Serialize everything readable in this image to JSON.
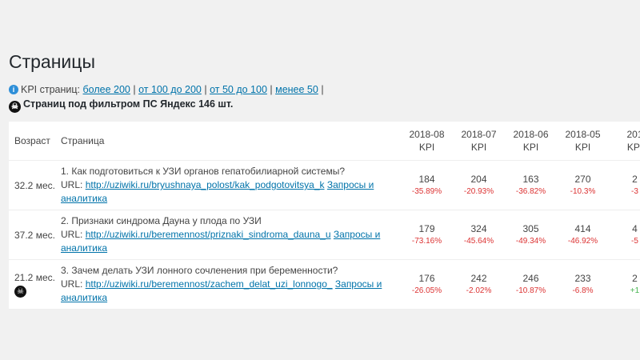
{
  "page_title": "Страницы",
  "kpi_filter": {
    "label": "KPI страниц:",
    "links": [
      "более 200",
      "от 100 до 200",
      "от 50 до 100",
      "менее 50"
    ]
  },
  "yandex_filter": "Страниц под фильтром ПС Яндекс 146 шт.",
  "table": {
    "headers": {
      "age": "Возраст",
      "page": "Страница",
      "months": [
        "2018-08",
        "2018-07",
        "2018-06",
        "2018-05",
        "201"
      ],
      "kpi": "KPI"
    },
    "url_label": "URL:",
    "analytics_label": "Запросы и аналитика",
    "rows": [
      {
        "age": "32.2 мес.",
        "title": "1. Как подготовиться к УЗИ органов гепатобилиарной системы?",
        "url": "http://uziwiki.ru/bryushnaya_polost/kak_podgotovitsya_k",
        "filtered": false,
        "kpi": [
          {
            "v": "184",
            "d": "-35.89%"
          },
          {
            "v": "204",
            "d": "-20.93%"
          },
          {
            "v": "163",
            "d": "-36.82%"
          },
          {
            "v": "270",
            "d": "-10.3%"
          },
          {
            "v": "2",
            "d": "-3"
          }
        ]
      },
      {
        "age": "37.2 мес.",
        "title": "2. Признаки синдрома Дауна у плода по УЗИ",
        "url": "http://uziwiki.ru/beremennost/priznaki_sindroma_dauna_u",
        "filtered": false,
        "kpi": [
          {
            "v": "179",
            "d": "-73.16%"
          },
          {
            "v": "324",
            "d": "-45.64%"
          },
          {
            "v": "305",
            "d": "-49.34%"
          },
          {
            "v": "414",
            "d": "-46.92%"
          },
          {
            "v": "4",
            "d": "-5"
          }
        ]
      },
      {
        "age": "21.2 мес.",
        "title": "3. Зачем делать УЗИ лонного сочленения при беременности?",
        "url": "http://uziwiki.ru/beremennost/zachem_delat_uzi_lonnogo_",
        "filtered": true,
        "kpi": [
          {
            "v": "176",
            "d": "-26.05%"
          },
          {
            "v": "242",
            "d": "-2.02%"
          },
          {
            "v": "246",
            "d": "-10.87%"
          },
          {
            "v": "233",
            "d": "-6.8%"
          },
          {
            "v": "2",
            "d": "+1"
          }
        ]
      }
    ]
  },
  "colors": {
    "link": "#0073aa",
    "negative": "#dc3232",
    "positive": "#46b450"
  }
}
